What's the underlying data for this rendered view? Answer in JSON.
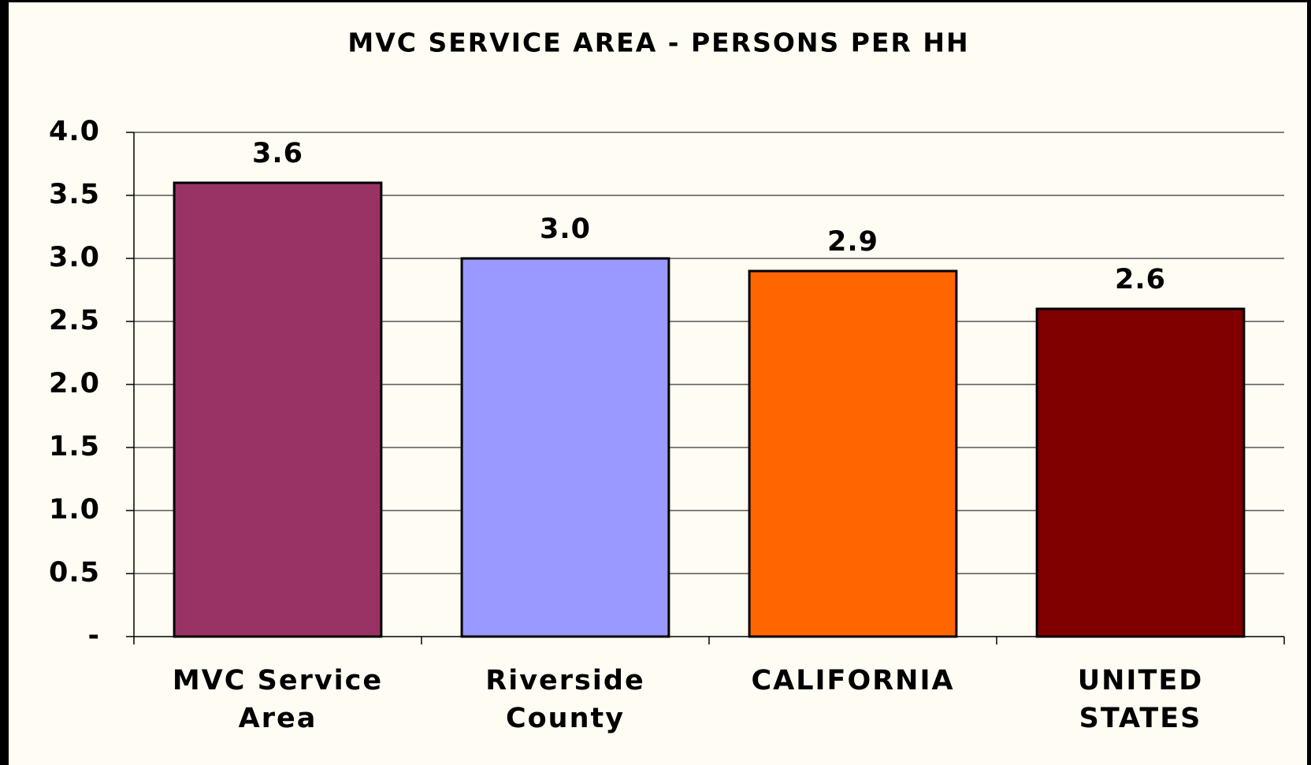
{
  "chart_data": {
    "type": "bar",
    "title": "MVC SERVICE AREA - PERSONS PER HH",
    "categories": [
      "MVC Service Area",
      "Riverside County",
      "CALIFORNIA",
      "UNITED STATES"
    ],
    "values": [
      3.6,
      3.0,
      2.9,
      2.6
    ],
    "value_labels": [
      "3.6",
      "3.0",
      "2.9",
      "2.6"
    ],
    "colors": [
      "#993366",
      "#9999ff",
      "#ff6600",
      "#800000"
    ],
    "ylim": [
      0,
      4
    ],
    "yticks": [
      {
        "value": 0,
        "label": "-"
      },
      0.5,
      {
        "value": 1.0,
        "label": "1.0"
      },
      1.5,
      {
        "value": 2.0,
        "label": "2.0"
      },
      2.5,
      {
        "value": 3.0,
        "label": "3.0"
      },
      3.5,
      {
        "value": 4.0,
        "label": "4.0"
      }
    ],
    "grid": true
  }
}
